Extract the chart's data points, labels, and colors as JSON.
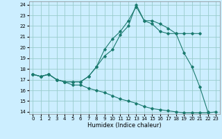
{
  "xlabel": "Humidex (Indice chaleur)",
  "bg_color": "#cceeff",
  "grid_color": "#99cccc",
  "line_color": "#1a7a6e",
  "xlim": [
    -0.5,
    23.5
  ],
  "ylim": [
    13.8,
    24.3
  ],
  "yticks": [
    14,
    15,
    16,
    17,
    18,
    19,
    20,
    21,
    22,
    23,
    24
  ],
  "xticks": [
    0,
    1,
    2,
    3,
    4,
    5,
    6,
    7,
    8,
    9,
    10,
    11,
    12,
    13,
    14,
    15,
    16,
    17,
    18,
    19,
    20,
    21,
    22,
    23
  ],
  "line1_x": [
    0,
    1,
    2,
    3,
    4,
    5,
    6,
    7,
    8,
    9,
    10,
    11,
    12,
    13,
    14,
    15,
    16,
    17,
    18,
    19,
    20,
    21,
    22
  ],
  "line1_y": [
    17.5,
    17.3,
    17.5,
    17.0,
    16.8,
    16.8,
    16.8,
    17.3,
    18.2,
    19.8,
    20.8,
    21.5,
    22.5,
    23.8,
    22.5,
    22.2,
    21.5,
    21.3,
    21.3,
    19.5,
    18.2,
    16.3,
    14.0
  ],
  "line2_x": [
    0,
    1,
    2,
    3,
    4,
    5,
    6,
    7,
    8,
    9,
    10,
    11,
    12,
    13,
    14,
    15,
    16,
    17,
    18,
    19,
    20,
    21
  ],
  "line2_y": [
    17.5,
    17.3,
    17.5,
    17.0,
    16.8,
    16.8,
    16.8,
    17.3,
    18.2,
    19.2,
    19.8,
    21.2,
    22.0,
    24.0,
    22.5,
    22.5,
    22.2,
    21.8,
    21.3,
    21.3,
    21.3,
    21.3
  ],
  "line3_x": [
    0,
    1,
    2,
    3,
    4,
    5,
    6,
    7,
    8,
    9,
    10,
    11,
    12,
    13,
    14,
    15,
    16,
    17,
    18,
    19,
    20,
    21,
    22,
    23
  ],
  "line3_y": [
    17.5,
    17.3,
    17.5,
    17.0,
    16.8,
    16.5,
    16.5,
    16.2,
    16.0,
    15.8,
    15.5,
    15.2,
    15.0,
    14.8,
    14.5,
    14.3,
    14.2,
    14.1,
    14.0,
    13.9,
    13.9,
    13.9,
    13.9,
    14.0
  ]
}
